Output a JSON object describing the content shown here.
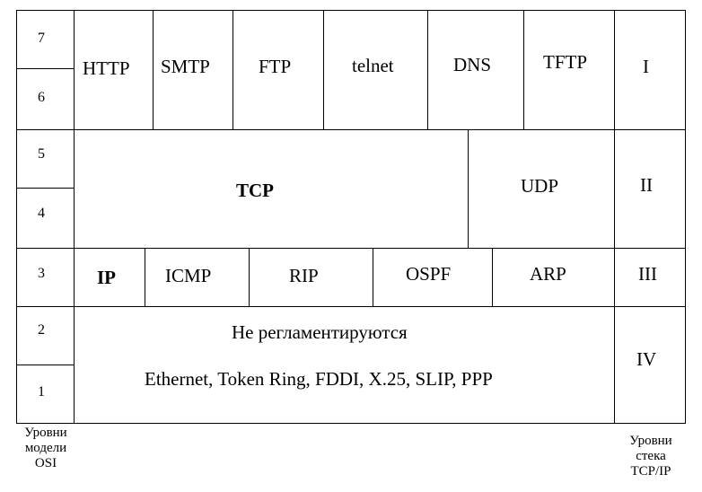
{
  "osi_levels": [
    "7",
    "6",
    "5",
    "4",
    "3",
    "2",
    "1"
  ],
  "tcpip_levels": [
    "I",
    "II",
    "III",
    "IV"
  ],
  "application": [
    "HTTP",
    "SMTP",
    "FTP",
    "telnet",
    "DNS",
    "TFTP"
  ],
  "transport": [
    "TCP",
    "UDP"
  ],
  "internet": [
    "IP",
    "ICMP",
    "RIP",
    "OSPF",
    "ARP"
  ],
  "network_access": {
    "line1": "Не регламентируются",
    "line2": "Ethernet, Token Ring, FDDI, X.25, SLIP, PPP"
  },
  "caption_osi": [
    "Уровни",
    "модели",
    "OSI"
  ],
  "caption_tcpip": [
    "Уровни",
    "стека",
    "TCP/IP"
  ]
}
